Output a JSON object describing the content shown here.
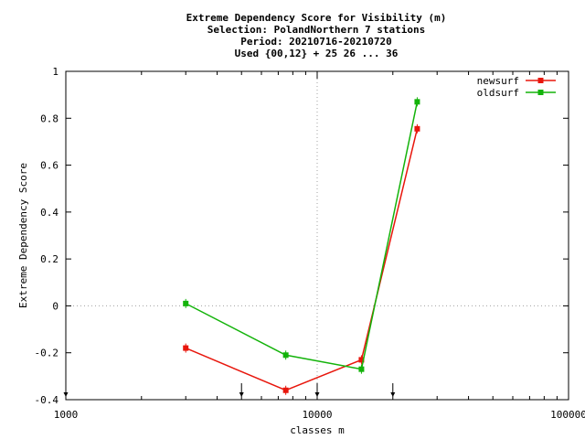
{
  "chart_data": {
    "type": "line",
    "title_lines": [
      "Extreme Dependency Score  for Visibility (m)",
      "Selection: PolandNorthern      7 stations",
      "Period: 20210716-20210720",
      "Used {00,12} + 25 26 ... 36"
    ],
    "xlabel": "classes m",
    "ylabel": "Extreme Dependency Score",
    "x_scale": "log",
    "xlim": [
      1000,
      100000
    ],
    "ylim": [
      -0.4,
      1
    ],
    "x_ticks": [
      {
        "value": 1000,
        "label": "1000"
      },
      {
        "value": 10000,
        "label": "10000"
      },
      {
        "value": 100000,
        "label": "100000"
      }
    ],
    "y_ticks": [
      {
        "value": -0.4,
        "label": "-0.4"
      },
      {
        "value": -0.2,
        "label": "-0.2"
      },
      {
        "value": 0,
        "label": "0"
      },
      {
        "value": 0.2,
        "label": "0.2"
      },
      {
        "value": 0.4,
        "label": "0.4"
      },
      {
        "value": 0.6,
        "label": "0.6"
      },
      {
        "value": 0.8,
        "label": "0.8"
      },
      {
        "value": 1,
        "label": "1"
      }
    ],
    "grid": "dotted lines at x=10000 and y=0",
    "legend_position": "top-right",
    "series": [
      {
        "name": "newsurf",
        "color": "#e8160c",
        "x": [
          3000,
          7500,
          15000,
          25000
        ],
        "y": [
          -0.18,
          -0.36,
          -0.23,
          0.755
        ]
      },
      {
        "name": "oldsurf",
        "color": "#13b30a",
        "x": [
          3000,
          7500,
          15000,
          25000
        ],
        "y": [
          0.01,
          -0.21,
          -0.27,
          0.87
        ]
      }
    ],
    "threshold_markers_x": [
      1000,
      5000,
      10000,
      20000
    ]
  }
}
